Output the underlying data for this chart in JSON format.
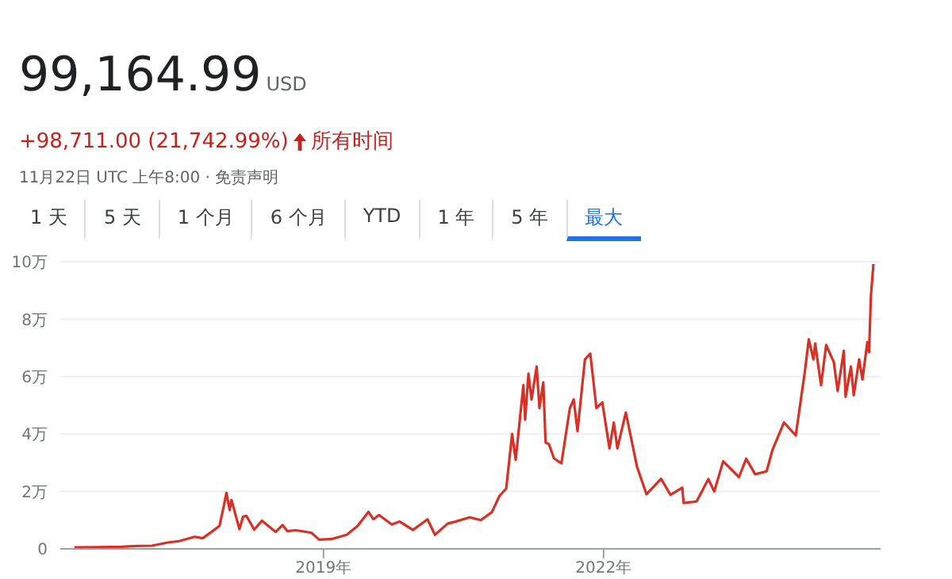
{
  "chart_data": {
    "type": "line",
    "title": "99,164.99",
    "subtitle": "USD",
    "annotations": [
      "+98,711.00 (21,742.99%)",
      "所有时间",
      "11月22日 UTC 上午8:00 · 免责声明",
      "1 天",
      "5 天",
      "1 个月",
      "6 个月",
      "YTD",
      "1 年",
      "5 年",
      "最大"
    ],
    "x": [
      "2016-05-01",
      "2016-08-01",
      "2016-11-01",
      "2017-01-01",
      "2017-03-01",
      "2017-05-01",
      "2017-06-15",
      "2017-08-15",
      "2017-09-15",
      "2017-10-20",
      "2017-11-20",
      "2017-12-07",
      "2017-12-17",
      "2017-12-30",
      "2018-01-06",
      "2018-02-06",
      "2018-02-20",
      "2018-03-05",
      "2018-04-05",
      "2018-05-05",
      "2018-06-28",
      "2018-07-25",
      "2018-08-12",
      "2018-09-15",
      "2018-11-15",
      "2018-12-15",
      "2019-02-01",
      "2019-04-02",
      "2019-05-15",
      "2019-06-26",
      "2019-07-15",
      "2019-08-06",
      "2019-09-25",
      "2019-10-26",
      "2019-12-17",
      "2020-02-12",
      "2020-03-12",
      "2020-05-01",
      "2020-06-01",
      "2020-07-26",
      "2020-09-08",
      "2020-10-21",
      "2020-11-20",
      "2020-12-16",
      "2021-01-08",
      "2021-01-22",
      "2021-02-21",
      "2021-02-28",
      "2021-03-13",
      "2021-03-25",
      "2021-04-14",
      "2021-04-25",
      "2021-05-10",
      "2021-05-19",
      "2021-06-01",
      "2021-06-21",
      "2021-07-20",
      "2021-08-22",
      "2021-09-06",
      "2021-09-21",
      "2021-10-20",
      "2021-11-10",
      "2021-12-04",
      "2021-12-27",
      "2022-01-24",
      "2022-02-10",
      "2022-02-24",
      "2022-03-29",
      "2022-05-12",
      "2022-06-18",
      "2022-08-14",
      "2022-09-20",
      "2022-11-05",
      "2022-11-10",
      "2022-12-31",
      "2023-02-15",
      "2023-03-10",
      "2023-04-14",
      "2023-06-15",
      "2023-07-13",
      "2023-08-17",
      "2023-10-01",
      "2023-10-24",
      "2023-12-08",
      "2024-01-23",
      "2024-02-28",
      "2024-03-14",
      "2024-04-01",
      "2024-04-08",
      "2024-05-01",
      "2024-05-21",
      "2024-06-20",
      "2024-07-05",
      "2024-07-29",
      "2024-08-05",
      "2024-08-26",
      "2024-09-06",
      "2024-09-27",
      "2024-10-10",
      "2024-10-29",
      "2024-11-05",
      "2024-11-12",
      "2024-11-22"
    ],
    "series": [
      {
        "color": "#d93025",
        "values": [
          0.05,
          0.06,
          0.07,
          0.1,
          0.11,
          0.22,
          0.27,
          0.42,
          0.37,
          0.59,
          0.8,
          1.5,
          1.95,
          1.35,
          1.7,
          0.69,
          1.12,
          1.15,
          0.67,
          0.98,
          0.59,
          0.83,
          0.62,
          0.65,
          0.56,
          0.32,
          0.34,
          0.49,
          0.8,
          1.29,
          1.03,
          1.18,
          0.85,
          0.95,
          0.66,
          1.03,
          0.49,
          0.88,
          0.95,
          1.1,
          1,
          1.28,
          1.85,
          2.1,
          4,
          3.1,
          5.7,
          4.5,
          6.1,
          5.2,
          6.35,
          4.9,
          5.8,
          3.7,
          3.65,
          3.15,
          2.98,
          4.9,
          5.2,
          4.1,
          6.6,
          6.8,
          4.9,
          5.1,
          3.5,
          4.4,
          3.5,
          4.75,
          2.85,
          1.9,
          2.44,
          1.88,
          2.13,
          1.6,
          1.65,
          2.43,
          2,
          3.05,
          2.5,
          3.14,
          2.6,
          2.7,
          3.45,
          4.4,
          3.95,
          6.2,
          7.3,
          6.6,
          7.15,
          5.7,
          7.1,
          6.5,
          5.5,
          6.9,
          5.3,
          6.35,
          5.35,
          6.6,
          5.9,
          7.2,
          6.85,
          8.8,
          9.92
        ]
      }
    ],
    "xlim": [
      "2016-03-07",
      "2024-12-20"
    ],
    "xticks": [
      {
        "value": "2019-01-01",
        "label": "2019年"
      },
      {
        "value": "2022-01-01",
        "label": "2022年"
      }
    ],
    "ylim": [
      0,
      10
    ],
    "yticks": [
      0,
      {
        "value": 2,
        "label": "2万"
      },
      {
        "value": 4,
        "label": "4万"
      },
      {
        "value": 6,
        "label": "6万"
      },
      {
        "value": 8,
        "label": "8万"
      },
      {
        "value": 10,
        "label": "10万"
      }
    ],
    "grid": "y",
    "legend": false,
    "line_style": "solid"
  }
}
